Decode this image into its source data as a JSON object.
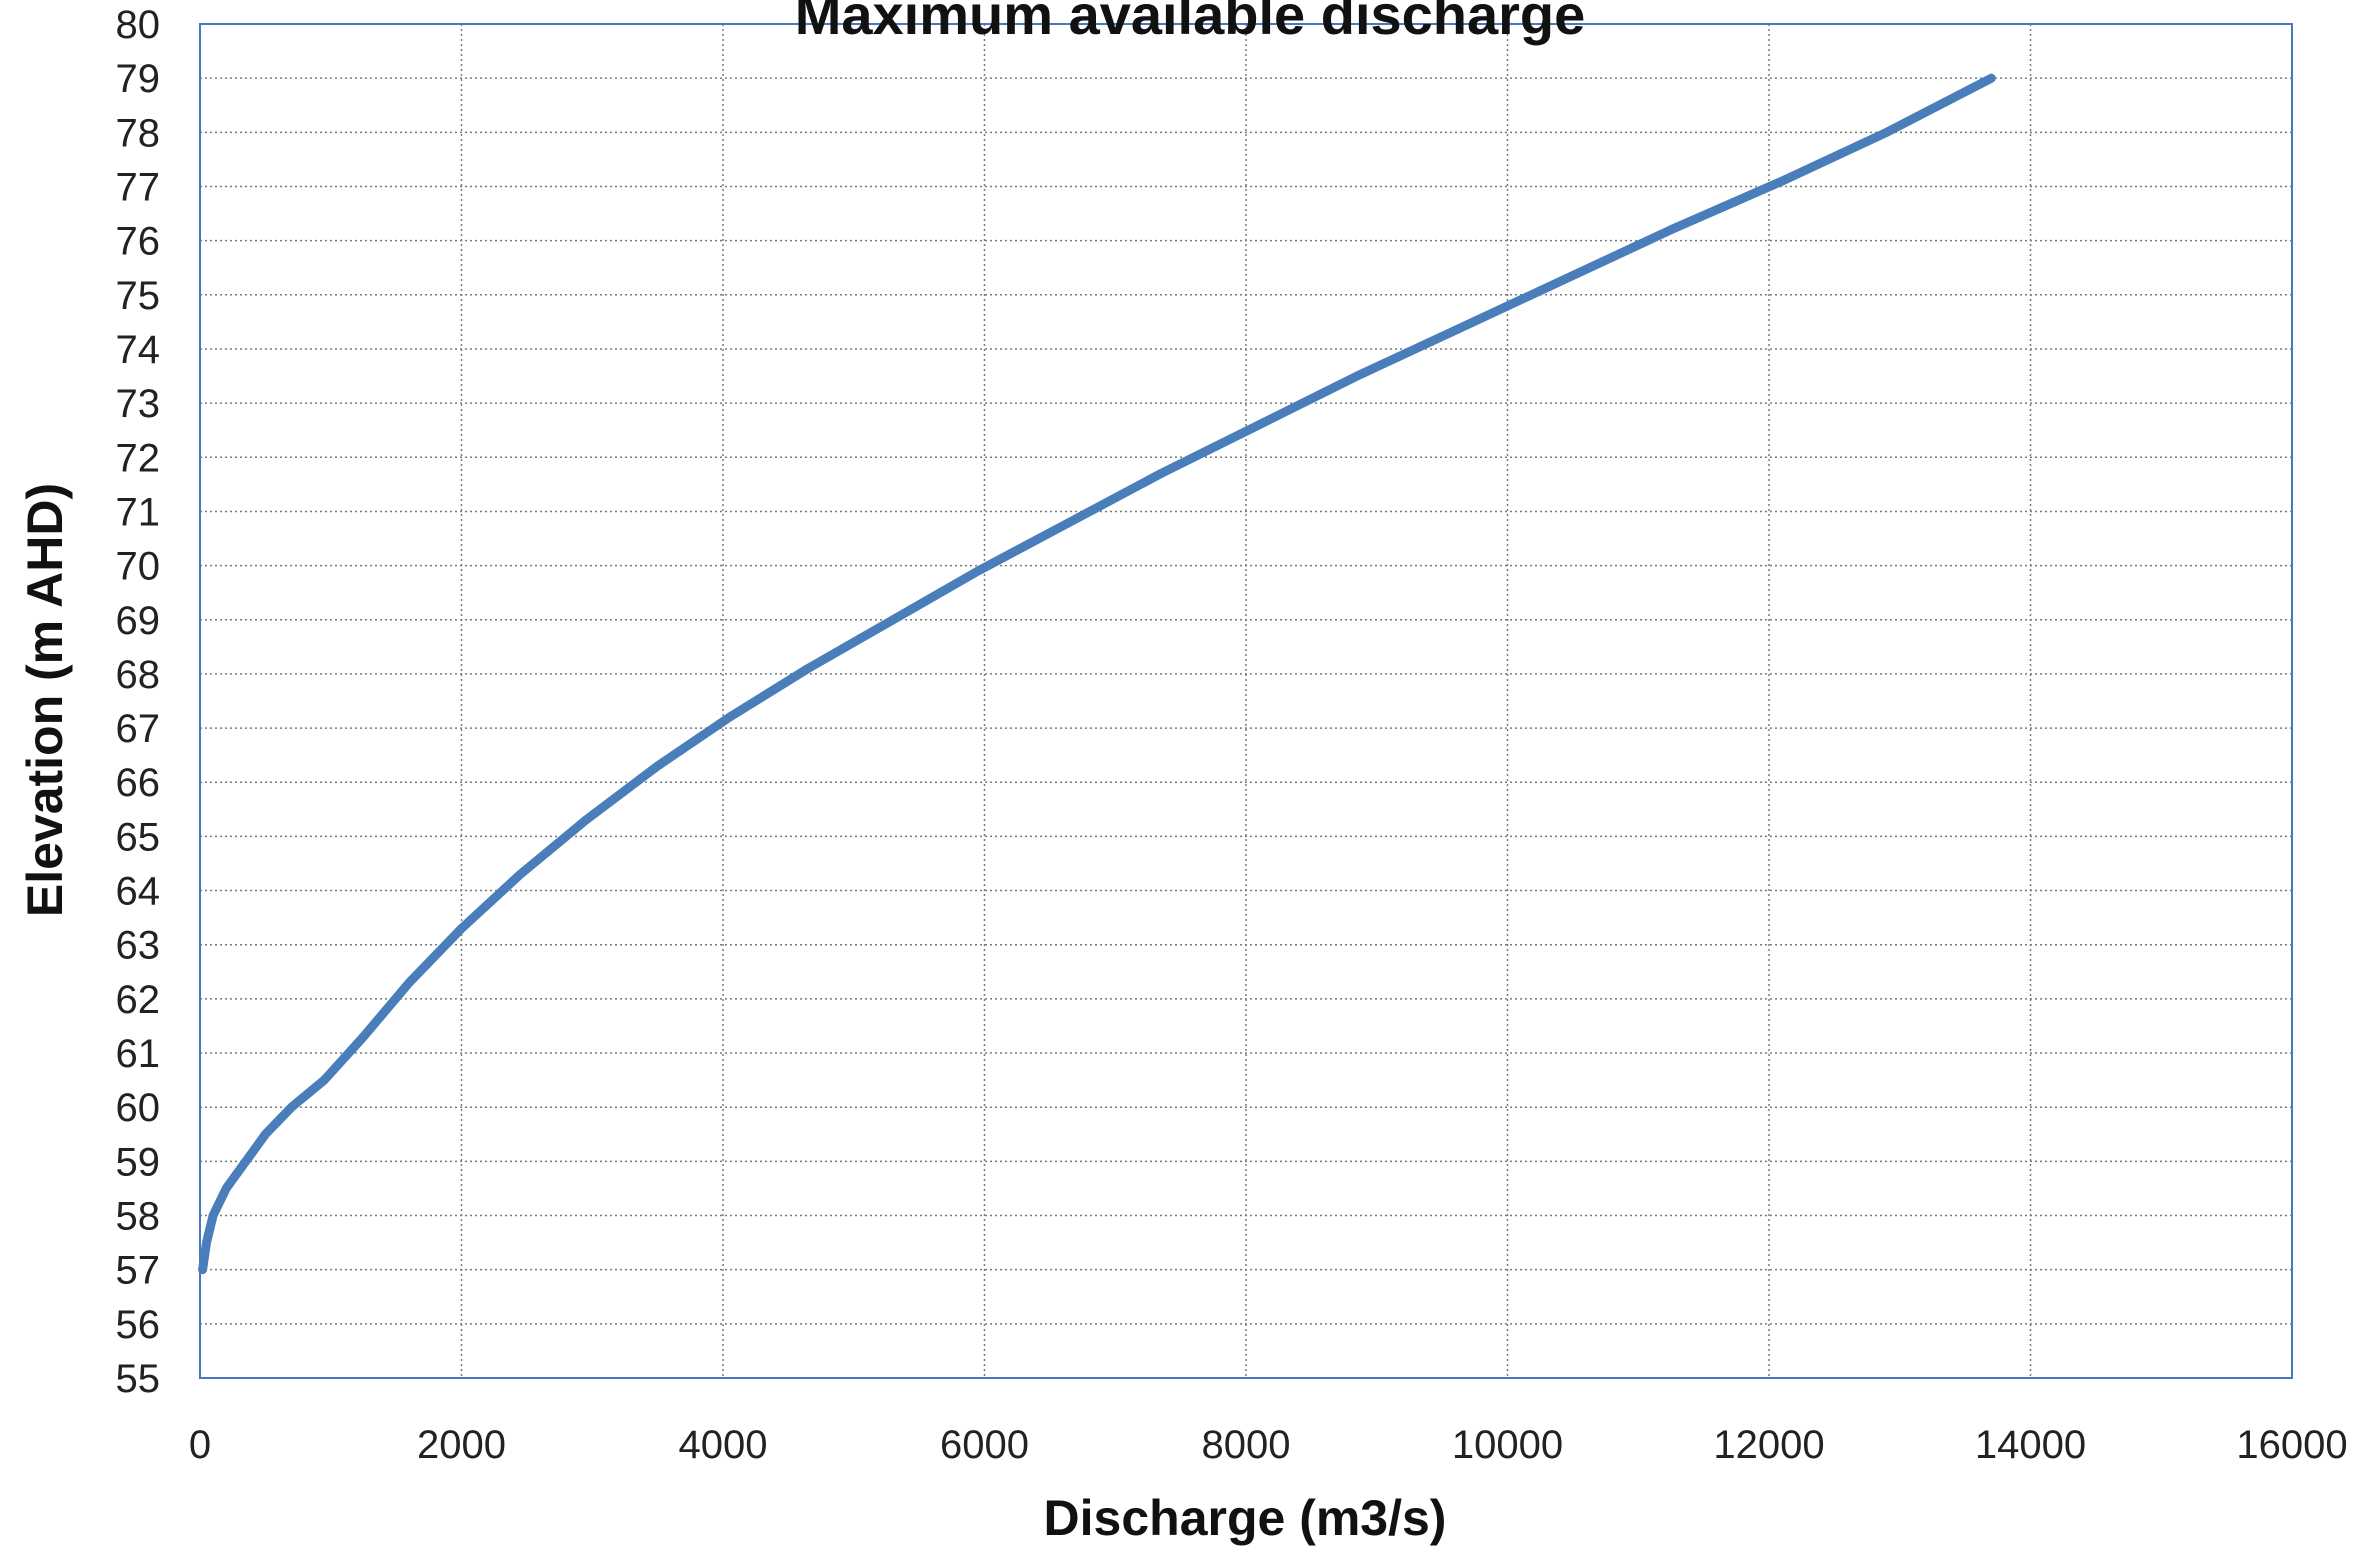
{
  "chart_data": {
    "type": "line",
    "title": "Maximum available discharge",
    "xlabel": "Discharge (m3/s)",
    "ylabel": "Elevation (m AHD)",
    "xlim": [
      0,
      16000
    ],
    "ylim": [
      55,
      80
    ],
    "x_ticks": [
      0,
      2000,
      4000,
      6000,
      8000,
      10000,
      12000,
      14000,
      16000
    ],
    "y_ticks": [
      55,
      56,
      57,
      58,
      59,
      60,
      61,
      62,
      63,
      64,
      65,
      66,
      67,
      68,
      69,
      70,
      71,
      72,
      73,
      74,
      75,
      76,
      77,
      78,
      79,
      80
    ],
    "x_tick_labels": [
      "0",
      "2000",
      "4000",
      "6000",
      "8000",
      "10000",
      "12000",
      "14000",
      "16000"
    ],
    "y_tick_labels": [
      "55",
      "56",
      "57",
      "58",
      "59",
      "60",
      "61",
      "62",
      "63",
      "64",
      "65",
      "66",
      "67",
      "68",
      "69",
      "70",
      "71",
      "72",
      "73",
      "74",
      "75",
      "76",
      "77",
      "78",
      "79",
      "80"
    ],
    "grid": true,
    "series": [
      {
        "color": "#4a7ebb",
        "x": [
          20,
          50,
          100,
          200,
          350,
          500,
          700,
          950,
          1250,
          1600,
          2000,
          2450,
          2950,
          3500,
          4050,
          4650,
          5300,
          5950,
          6650,
          7350,
          8100,
          8850,
          9650,
          10450,
          11250,
          12100,
          12900,
          13700
        ],
        "y": [
          57,
          57.5,
          58,
          58.5,
          59,
          59.5,
          60,
          60.5,
          61.3,
          62.3,
          63.3,
          64.3,
          65.3,
          66.3,
          67.2,
          68.1,
          69.0,
          69.9,
          70.8,
          71.7,
          72.6,
          73.5,
          74.4,
          75.3,
          76.2,
          77.1,
          78.0,
          79.0
        ]
      }
    ]
  }
}
